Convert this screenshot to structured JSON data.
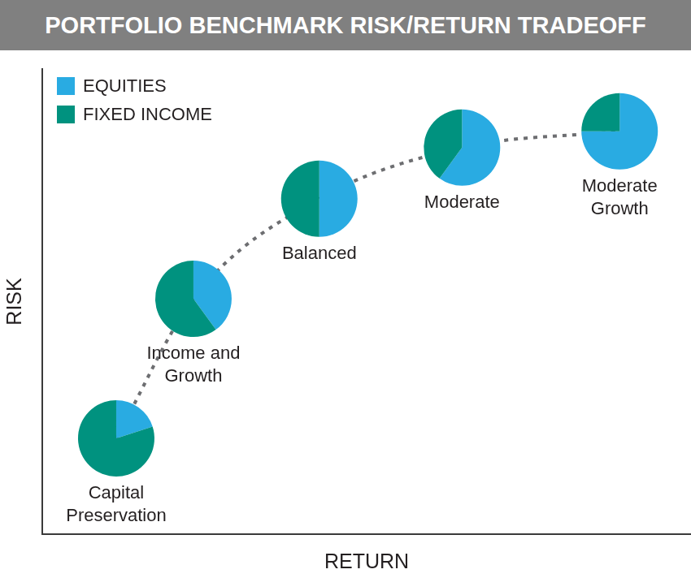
{
  "chart_data": {
    "type": "scatter",
    "title": "PORTFOLIO BENCHMARK RISK/RETURN TRADEOFF",
    "x_label": "RETURN",
    "y_label": "RISK",
    "categories": [
      "Capital Preservation",
      "Income and Growth",
      "Balanced",
      "Moderate",
      "Moderate Growth"
    ],
    "x": [
      11.4,
      23.3,
      42.7,
      64.7,
      89.0
    ],
    "y": [
      20.6,
      50.6,
      72.1,
      83.1,
      86.6
    ],
    "series": [
      {
        "name": "EQUITIES",
        "color": "#29abe2",
        "values": [
          20,
          40,
          50,
          60,
          75
        ]
      },
      {
        "name": "FIXED INCOME",
        "color": "#00927f",
        "values": [
          80,
          60,
          50,
          40,
          25
        ]
      }
    ],
    "xlim": [
      0,
      100
    ],
    "ylim": [
      0,
      100
    ],
    "tick_labels": false,
    "grid": false,
    "legend": "top-left",
    "marker": "pie",
    "line_style": "dotted"
  }
}
